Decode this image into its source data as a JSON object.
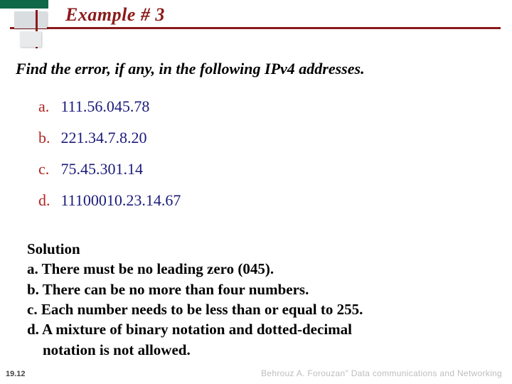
{
  "colors": {
    "title": "#8b1a1a",
    "accent_green": "#0f6848",
    "item_label": "#b22222",
    "item_text": "#1a1a7a",
    "body_text": "#000000",
    "footer_text": "#bdbdbd",
    "background": "#ffffff"
  },
  "typography": {
    "title": {
      "font_family": "Times New Roman",
      "font_size_pt": 20,
      "weight": "bold",
      "style": "italic"
    },
    "prompt": {
      "font_family": "Times New Roman",
      "font_size_pt": 16,
      "weight": "bold",
      "style": "italic"
    },
    "items": {
      "font_family": "Times New Roman",
      "font_size_pt": 16,
      "weight": "normal"
    },
    "solution": {
      "font_family": "Times New Roman",
      "font_size_pt": 16,
      "weight": "bold"
    },
    "page_num": {
      "font_family": "Arial",
      "font_size_pt": 8,
      "weight": "bold"
    },
    "footer": {
      "font_family": "Comic Sans MS",
      "font_size_pt": 9
    }
  },
  "title": "Example # 3",
  "prompt": "Find the error, if any, in the following IPv4 addresses.",
  "items": [
    {
      "label": "a.",
      "text": "111.56.045.78"
    },
    {
      "label": "b.",
      "text": "221.34.7.8.20"
    },
    {
      "label": "c.",
      "text": "75.45.301.14"
    },
    {
      "label": "d.",
      "text": "11100010.23.14.67"
    }
  ],
  "solution": {
    "heading": "Solution",
    "lines": [
      "a. There must be no leading zero (045).",
      "b. There can be no more than four numbers.",
      "c. Each number needs to be less than or equal to 255.",
      "d. A mixture of binary notation and dotted-decimal"
    ],
    "last_line_indent": "notation is not allowed."
  },
  "page_number": "19.12",
  "footer_credit": "Behrouz A. Forouzan\" Data communications and Networking"
}
